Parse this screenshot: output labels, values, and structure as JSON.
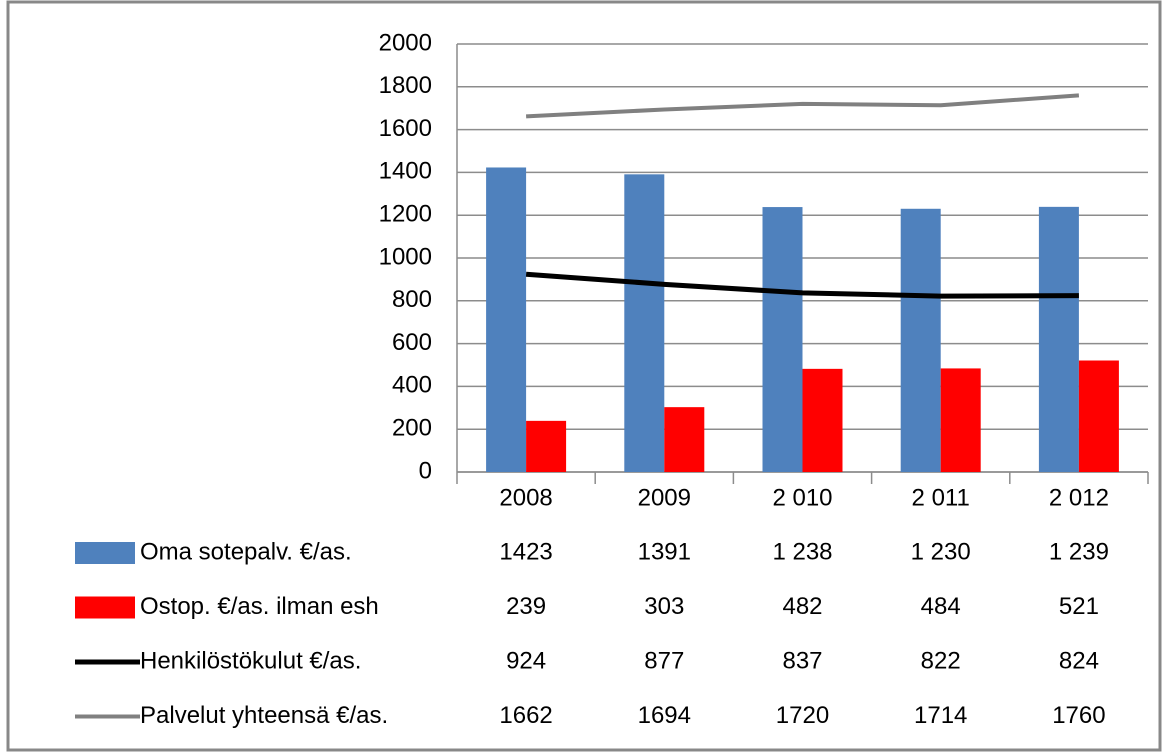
{
  "chart_data": {
    "type": "bar",
    "categories": [
      "2008",
      "2009",
      "2 010",
      "2 011",
      "2 012"
    ],
    "series": [
      {
        "name": "Oma sotepalv.  €/as.",
        "type": "bar",
        "color": "#4f81bd",
        "values": [
          1423,
          1391,
          1238,
          1230,
          1239
        ],
        "value_labels": [
          "1423",
          "1391",
          "1 238",
          "1 230",
          "1 239"
        ]
      },
      {
        "name": "Ostop. €/as. ilman esh",
        "type": "bar",
        "color": "#ff0000",
        "values": [
          239,
          303,
          482,
          484,
          521
        ]
      },
      {
        "name": "Henkilöstökulut €/as.",
        "type": "line",
        "color": "#000000",
        "values": [
          924,
          877,
          837,
          822,
          824
        ]
      },
      {
        "name": "Palvelut yhteensä €/as.",
        "type": "line",
        "color": "#808080",
        "values": [
          1662,
          1694,
          1720,
          1714,
          1760
        ]
      }
    ],
    "ylim": [
      0,
      2000
    ],
    "yticks": [
      0,
      200,
      400,
      600,
      800,
      1000,
      1200,
      1400,
      1600,
      1800,
      2000
    ],
    "grid": true
  }
}
